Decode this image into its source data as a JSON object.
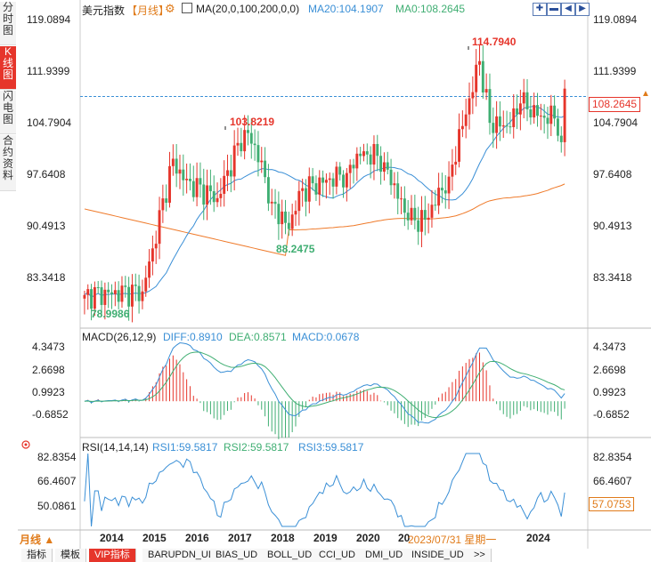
{
  "side_tabs": [
    "分时图",
    "K线图",
    "闪电图",
    "合约资料"
  ],
  "header": {
    "symbol": "美元指数",
    "period_tag": "【月线】",
    "ma_label": "MA(20,0,100,200,0,0)",
    "ma20": "MA20:104.1907",
    "ma0": "MA0:108.2645"
  },
  "price_axis": [
    "119.0894",
    "111.9399",
    "104.7904",
    "97.6408",
    "90.4913",
    "83.3418"
  ],
  "current_price_tag": "108.2645",
  "annotations": {
    "high": "114.7940",
    "mid_high": "103.8219",
    "mid_low": "88.2475",
    "low": "78.9986"
  },
  "macd": {
    "title": "MACD(26,12,9)",
    "diff": "DIFF:0.8910",
    "dea": "DEA:0.8571",
    "macd": "MACD:0.0678",
    "axis": [
      "4.3473",
      "2.6698",
      "0.9923",
      "-0.6852"
    ]
  },
  "rsi": {
    "title": "RSI(14,14,14)",
    "rsi1": "RSI1:59.5817",
    "rsi2": "RSI2:59.5817",
    "rsi3": "RSI3:59.5817",
    "axis": [
      "82.8354",
      "66.4607",
      "50.0861"
    ],
    "current": "57.0753"
  },
  "time_axis": {
    "period_button": "月线",
    "years": [
      "2014",
      "2015",
      "2016",
      "2017",
      "2018",
      "2019",
      "2020",
      "20",
      "2024"
    ],
    "cursor_label": "2023/07/31 星期一"
  },
  "bottom_tabs": [
    "指标",
    "模板",
    "VIP指标",
    "BARUPDN_UD",
    "BIAS_UD",
    "BOLL_UD",
    "CCI_UD",
    "DMI_UD",
    "INSIDE_UD",
    ">>"
  ],
  "colors": {
    "up": "#e6352b",
    "down": "#3fae72",
    "ma20": "#3a8fd6",
    "ma100": "#ef7a2a",
    "dea": "#3fae72",
    "rsi": "#3a8fd6"
  },
  "chart_data": {
    "type": "candlestick",
    "interval": "monthly",
    "x_range": [
      "2013-01",
      "2024-10"
    ],
    "y_range": [
      76.0,
      120.0
    ],
    "anchors": [
      {
        "date": "2013-01",
        "close": 79.5
      },
      {
        "date": "2014-06",
        "close": 80.0
      },
      {
        "date": "2014-09",
        "close": 86.0
      },
      {
        "date": "2015-03",
        "close": 98.5
      },
      {
        "date": "2015-06",
        "close": 95.5
      },
      {
        "date": "2016-04",
        "close": 93.0
      },
      {
        "date": "2016-12",
        "close": 102.5
      },
      {
        "date": "2017-03",
        "close": 100.4
      },
      {
        "date": "2017-08",
        "close": 92.5
      },
      {
        "date": "2018-01",
        "close": 88.7
      },
      {
        "date": "2018-04",
        "close": 94.0
      },
      {
        "date": "2019-06",
        "close": 96.5
      },
      {
        "date": "2019-09",
        "close": 99.2
      },
      {
        "date": "2020-03",
        "close": 98.9
      },
      {
        "date": "2020-05",
        "close": 98.0
      },
      {
        "date": "2020-12",
        "close": 89.9
      },
      {
        "date": "2021-05",
        "close": 90.0
      },
      {
        "date": "2021-12",
        "close": 96.0
      },
      {
        "date": "2022-09",
        "close": 112.1
      },
      {
        "date": "2022-12",
        "close": 103.5
      },
      {
        "date": "2023-06",
        "close": 102.9
      },
      {
        "date": "2023-09",
        "close": 106.2
      },
      {
        "date": "2024-03",
        "close": 104.5
      },
      {
        "date": "2024-07",
        "close": 104.1
      },
      {
        "date": "2024-08",
        "close": 101.7
      },
      {
        "date": "2024-09",
        "close": 100.8
      },
      {
        "date": "2024-10",
        "close": 108.2645
      }
    ]
  }
}
